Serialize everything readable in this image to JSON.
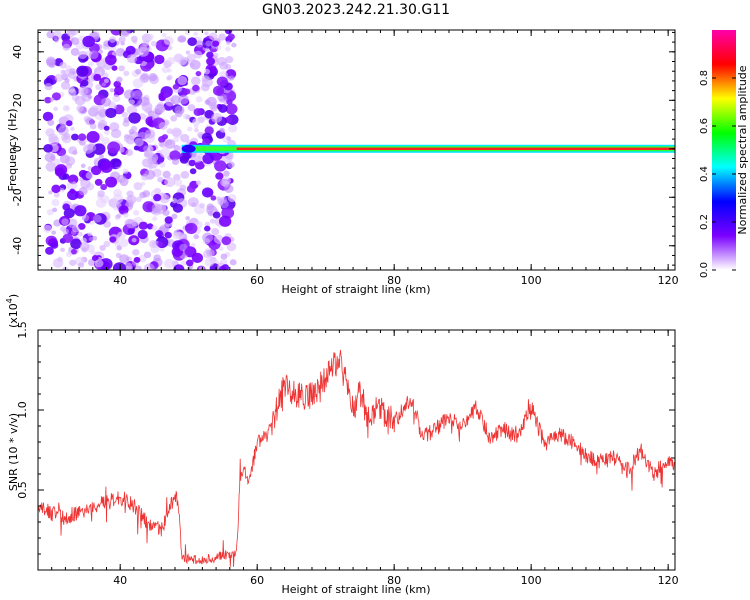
{
  "title": "GN03.2023.242.21.30.G11",
  "chart_data": [
    {
      "type": "heatmap",
      "xlabel": "Height of straight line (km)",
      "ylabel": "Frequency (Hz)",
      "xlim": [
        28,
        121
      ],
      "ylim": [
        -50,
        49
      ],
      "xticks": [
        40,
        60,
        80,
        100,
        120
      ],
      "yticks": [
        -40,
        -20,
        0,
        20,
        40
      ],
      "colorbar": {
        "label": "Normalized spectral amplitude",
        "range": [
          0,
          1
        ],
        "ticks": [
          0.0,
          0.2,
          0.4,
          0.6,
          0.8
        ],
        "tick_labels": [
          "0.0",
          "0.2",
          "0.4",
          "0.6",
          "0.8"
        ],
        "colormap": [
          "#ffffff",
          "#7a00ff",
          "#0000ff",
          "#00ffff",
          "#00ff00",
          "#ffff00",
          "#ff0000",
          "#ff00aa"
        ]
      },
      "scatter_region": {
        "x_range": [
          30,
          58
        ],
        "y_range": [
          -50,
          49
        ],
        "density": "high"
      },
      "carrier_line": {
        "frequency": 0,
        "x_range": [
          49,
          121
        ],
        "peak_amplitude": 1.0
      }
    },
    {
      "type": "line",
      "xlabel": "Height of straight line (km)",
      "ylabel": "SNR (10 * v/v)",
      "y_multiplier_label": "(x10",
      "y_multiplier_exp": "4",
      "y_multiplier_close": ")",
      "xlim": [
        28,
        121
      ],
      "ylim": [
        0,
        1.5
      ],
      "xticks": [
        40,
        60,
        80,
        100,
        120
      ],
      "yticks": [
        0.5,
        1.0,
        1.5
      ],
      "ytick_labels": [
        "0.5",
        "1.0",
        "1.5"
      ],
      "series": [
        {
          "color": "#ee3333",
          "x": [
            28,
            30,
            32,
            34,
            36,
            38,
            40,
            42,
            44,
            46,
            47,
            48,
            48.5,
            49,
            50,
            52,
            54,
            56,
            57,
            57.5,
            58,
            59,
            60,
            62,
            63,
            64,
            66,
            68,
            70,
            72,
            74,
            75,
            76,
            78,
            80,
            82,
            83,
            84,
            86,
            88,
            90,
            92,
            94,
            96,
            98,
            100,
            102,
            104,
            106,
            108,
            110,
            112,
            114,
            116,
            118,
            120,
            121
          ],
          "y": [
            0.4,
            0.35,
            0.33,
            0.36,
            0.4,
            0.43,
            0.45,
            0.4,
            0.3,
            0.25,
            0.35,
            0.48,
            0.42,
            0.08,
            0.07,
            0.06,
            0.08,
            0.1,
            0.12,
            0.55,
            0.6,
            0.58,
            0.8,
            0.88,
            1.02,
            1.15,
            1.08,
            1.1,
            1.2,
            1.32,
            1.0,
            1.12,
            0.98,
            1.0,
            0.92,
            1.05,
            1.02,
            0.82,
            0.88,
            0.95,
            0.9,
            1.02,
            0.82,
            0.88,
            0.82,
            1.02,
            0.78,
            0.85,
            0.8,
            0.72,
            0.68,
            0.7,
            0.62,
            0.75,
            0.6,
            0.7,
            0.65
          ]
        }
      ]
    }
  ]
}
